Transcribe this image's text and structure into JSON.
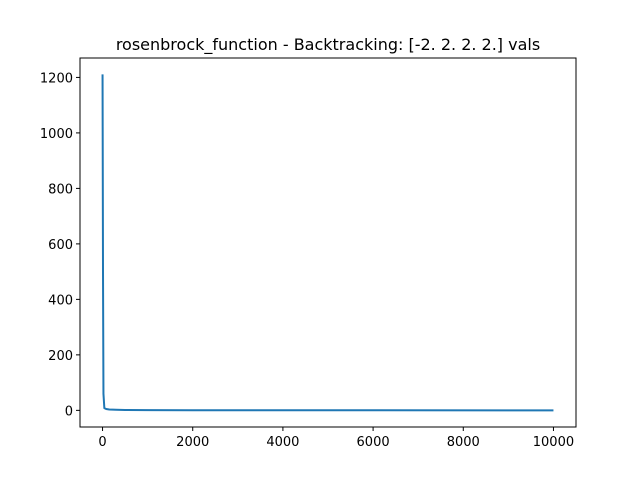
{
  "chart_data": {
    "type": "line",
    "title": "rosenbrock_function - Backtracking: [-2.  2.  2.  2.] vals",
    "xlabel": "",
    "ylabel": "",
    "xlim": [
      -500,
      10500
    ],
    "ylim": [
      -60,
      1270
    ],
    "x_ticks": [
      0,
      2000,
      4000,
      6000,
      8000,
      10000
    ],
    "y_ticks": [
      0,
      200,
      400,
      600,
      800,
      1000,
      1200
    ],
    "grid": false,
    "legend": "none",
    "series": [
      {
        "color": "#1f77b4",
        "x": [
          0,
          10,
          20,
          40,
          80,
          150,
          300,
          500,
          1000,
          2000,
          5000,
          10000
        ],
        "y": [
          1211,
          500,
          60,
          8,
          5,
          3,
          2,
          1.2,
          0.8,
          0.5,
          0.2,
          0.1
        ]
      }
    ]
  }
}
